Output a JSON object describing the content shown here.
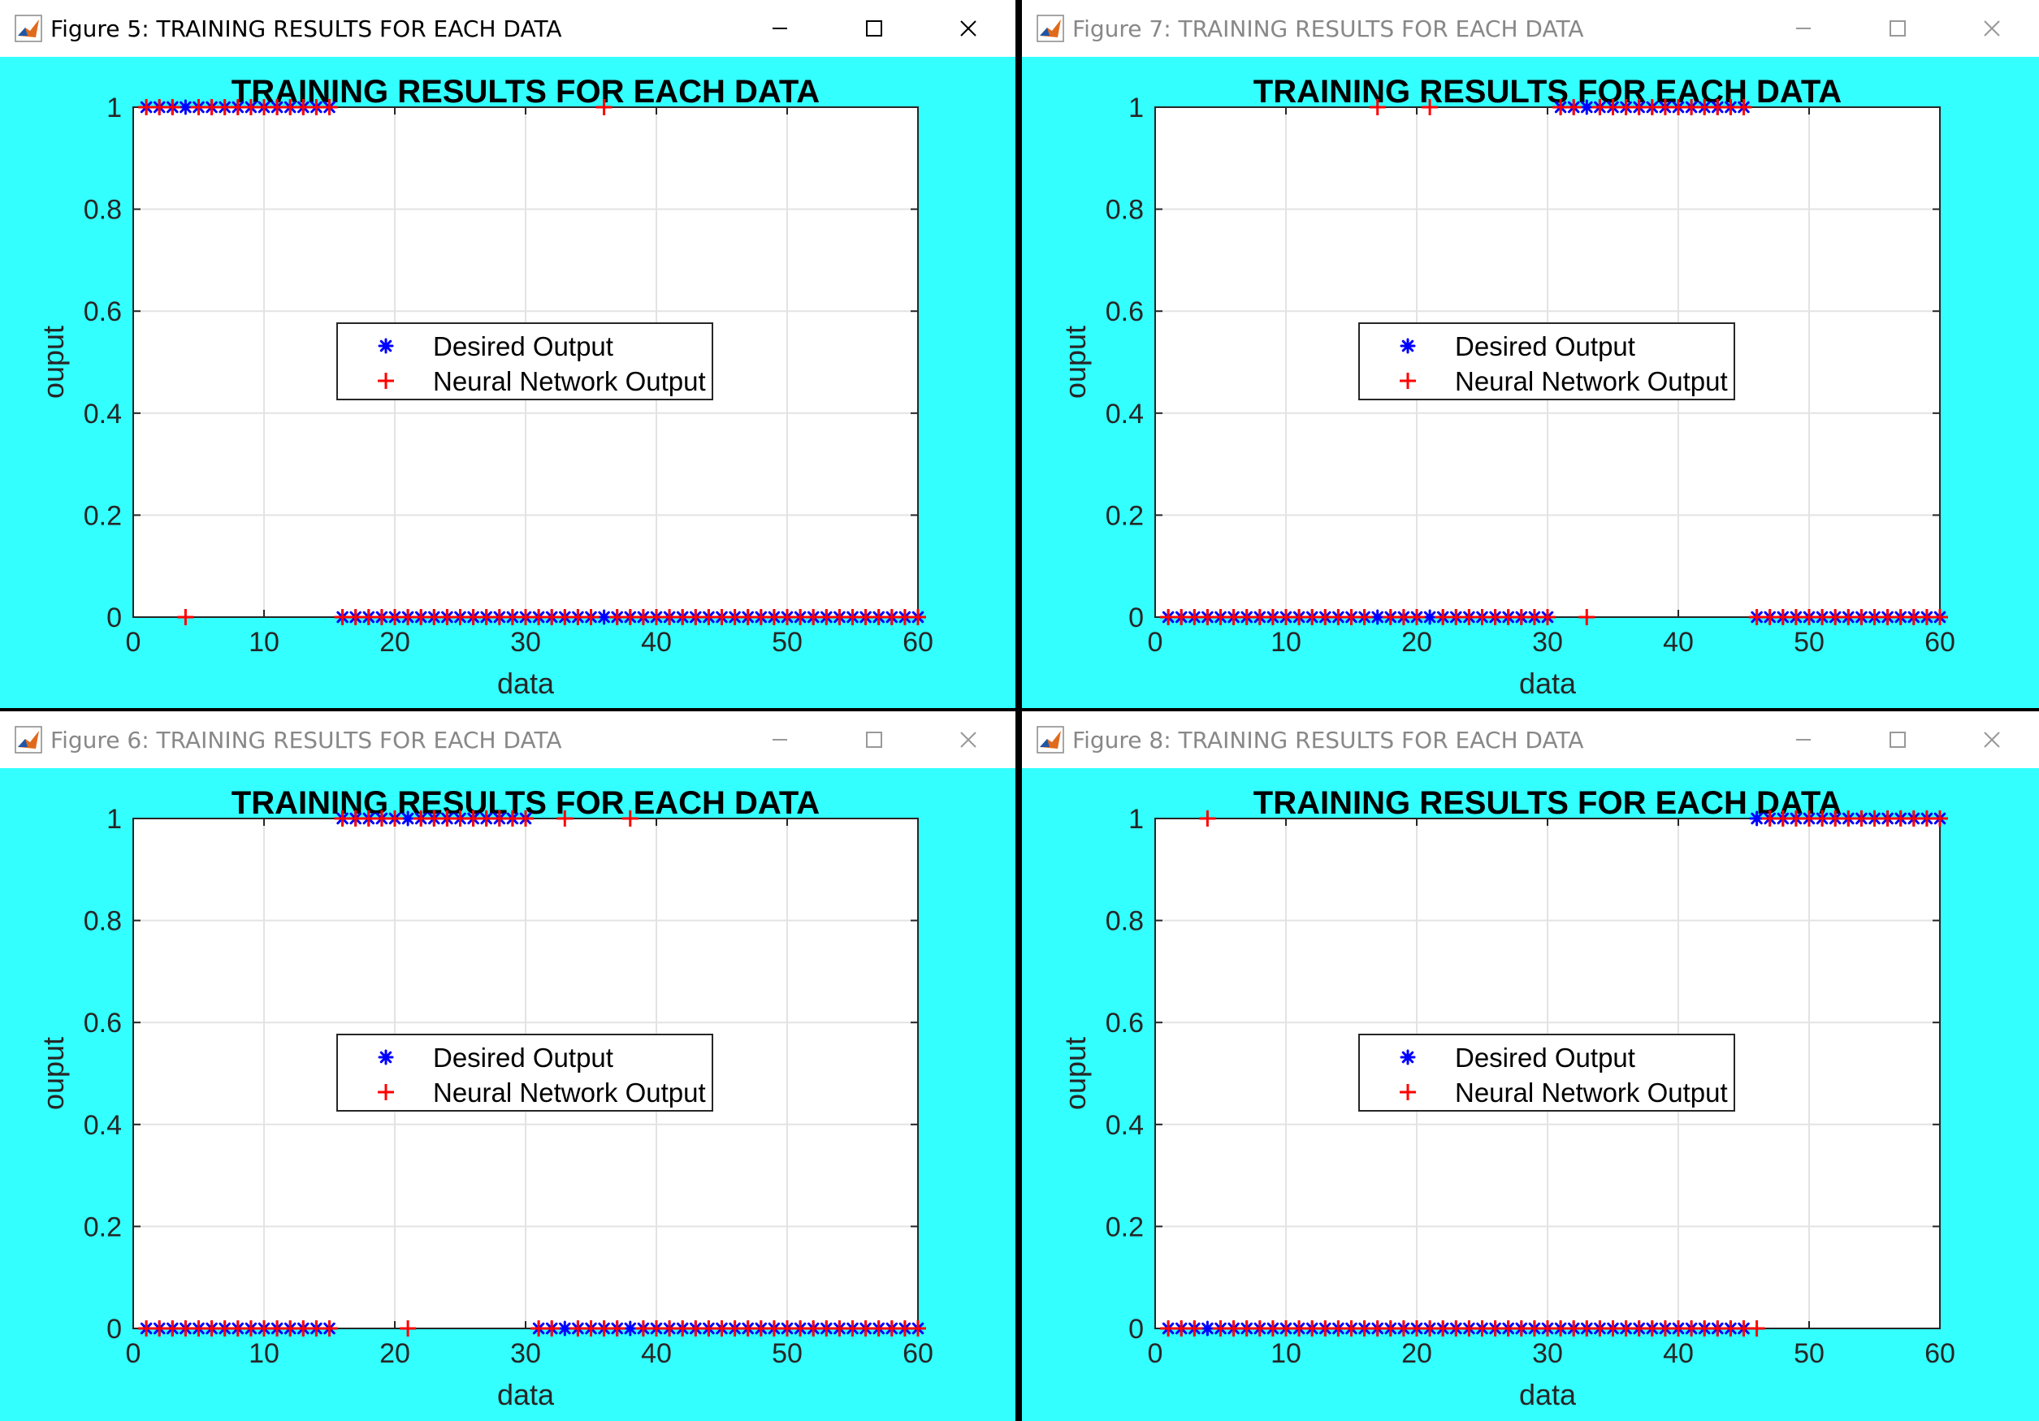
{
  "colors": {
    "figure_background": "#33ffff",
    "desired_marker": "#0000ff",
    "network_marker": "#ff0000"
  },
  "window_icons": [
    "matlab-icon",
    "minimize-icon",
    "maximize-icon",
    "close-icon"
  ],
  "windows": [
    {
      "title": "Figure 5: TRAINING RESULTS FOR EACH DATA",
      "active": true
    },
    {
      "title": "Figure 7: TRAINING RESULTS FOR EACH DATA",
      "active": false
    },
    {
      "title": "Figure 6: TRAINING RESULTS FOR EACH DATA",
      "active": false
    },
    {
      "title": "Figure 8: TRAINING RESULTS FOR EACH DATA",
      "active": false
    }
  ],
  "chart_data": [
    {
      "type": "scatter",
      "title": "TRAINING RESULTS FOR EACH DATA",
      "xlabel": "data",
      "ylabel": "ouput",
      "xlim": [
        0,
        60
      ],
      "ylim": [
        0,
        1
      ],
      "xticks": [
        "0",
        "10",
        "20",
        "30",
        "40",
        "50",
        "60"
      ],
      "yticks": [
        "0",
        "0.2",
        "0.4",
        "0.6",
        "0.8",
        "1"
      ],
      "grid": true,
      "legend": "center",
      "series": [
        {
          "name": "Desired Output",
          "marker": "*",
          "color": "#0000ff",
          "x": [
            1,
            2,
            3,
            4,
            5,
            6,
            7,
            8,
            9,
            10,
            11,
            12,
            13,
            14,
            15,
            16,
            17,
            18,
            19,
            20,
            21,
            22,
            23,
            24,
            25,
            26,
            27,
            28,
            29,
            30,
            31,
            32,
            33,
            34,
            35,
            36,
            37,
            38,
            39,
            40,
            41,
            42,
            43,
            44,
            45,
            46,
            47,
            48,
            49,
            50,
            51,
            52,
            53,
            54,
            55,
            56,
            57,
            58,
            59,
            60
          ],
          "y": [
            1,
            1,
            1,
            1,
            1,
            1,
            1,
            1,
            1,
            1,
            1,
            1,
            1,
            1,
            1,
            0,
            0,
            0,
            0,
            0,
            0,
            0,
            0,
            0,
            0,
            0,
            0,
            0,
            0,
            0,
            0,
            0,
            0,
            0,
            0,
            0,
            0,
            0,
            0,
            0,
            0,
            0,
            0,
            0,
            0,
            0,
            0,
            0,
            0,
            0,
            0,
            0,
            0,
            0,
            0,
            0,
            0,
            0,
            0,
            0
          ]
        },
        {
          "name": "Neural Network Output",
          "marker": "+",
          "color": "#ff0000",
          "x": [
            1,
            2,
            3,
            4,
            5,
            6,
            7,
            8,
            9,
            10,
            11,
            12,
            13,
            14,
            15,
            16,
            17,
            18,
            19,
            20,
            21,
            22,
            23,
            24,
            25,
            26,
            27,
            28,
            29,
            30,
            31,
            32,
            33,
            34,
            35,
            36,
            37,
            38,
            39,
            40,
            41,
            42,
            43,
            44,
            45,
            46,
            47,
            48,
            49,
            50,
            51,
            52,
            53,
            54,
            55,
            56,
            57,
            58,
            59,
            60
          ],
          "y": [
            1,
            1,
            1,
            0,
            1,
            1,
            1,
            1,
            1,
            1,
            1,
            1,
            1,
            1,
            1,
            0,
            0,
            0,
            0,
            0,
            0,
            0,
            0,
            0,
            0,
            0,
            0,
            0,
            0,
            0,
            0,
            0,
            0,
            0,
            0,
            1,
            0,
            0,
            0,
            0,
            0,
            0,
            0,
            0,
            0,
            0,
            0,
            0,
            0,
            0,
            0,
            0,
            0,
            0,
            0,
            0,
            0,
            0,
            0,
            0
          ]
        }
      ]
    },
    {
      "type": "scatter",
      "title": "TRAINING RESULTS FOR EACH DATA",
      "xlabel": "data",
      "ylabel": "ouput",
      "xlim": [
        0,
        60
      ],
      "ylim": [
        0,
        1
      ],
      "xticks": [
        "0",
        "10",
        "20",
        "30",
        "40",
        "50",
        "60"
      ],
      "yticks": [
        "0",
        "0.2",
        "0.4",
        "0.6",
        "0.8",
        "1"
      ],
      "grid": true,
      "legend": "center",
      "series": [
        {
          "name": "Desired Output",
          "marker": "*",
          "color": "#0000ff",
          "x": [
            1,
            2,
            3,
            4,
            5,
            6,
            7,
            8,
            9,
            10,
            11,
            12,
            13,
            14,
            15,
            16,
            17,
            18,
            19,
            20,
            21,
            22,
            23,
            24,
            25,
            26,
            27,
            28,
            29,
            30,
            31,
            32,
            33,
            34,
            35,
            36,
            37,
            38,
            39,
            40,
            41,
            42,
            43,
            44,
            45,
            46,
            47,
            48,
            49,
            50,
            51,
            52,
            53,
            54,
            55,
            56,
            57,
            58,
            59,
            60
          ],
          "y": [
            0,
            0,
            0,
            0,
            0,
            0,
            0,
            0,
            0,
            0,
            0,
            0,
            0,
            0,
            0,
            0,
            0,
            0,
            0,
            0,
            0,
            0,
            0,
            0,
            0,
            0,
            0,
            0,
            0,
            0,
            1,
            1,
            1,
            1,
            1,
            1,
            1,
            1,
            1,
            1,
            1,
            1,
            1,
            1,
            1,
            0,
            0,
            0,
            0,
            0,
            0,
            0,
            0,
            0,
            0,
            0,
            0,
            0,
            0,
            0
          ]
        },
        {
          "name": "Neural Network Output",
          "marker": "+",
          "color": "#ff0000",
          "x": [
            1,
            2,
            3,
            4,
            5,
            6,
            7,
            8,
            9,
            10,
            11,
            12,
            13,
            14,
            15,
            16,
            17,
            18,
            19,
            20,
            21,
            22,
            23,
            24,
            25,
            26,
            27,
            28,
            29,
            30,
            31,
            32,
            33,
            34,
            35,
            36,
            37,
            38,
            39,
            40,
            41,
            42,
            43,
            44,
            45,
            46,
            47,
            48,
            49,
            50,
            51,
            52,
            53,
            54,
            55,
            56,
            57,
            58,
            59,
            60
          ],
          "y": [
            0,
            0,
            0,
            0,
            0,
            0,
            0,
            0,
            0,
            0,
            0,
            0,
            0,
            0,
            0,
            0,
            1,
            0,
            0,
            0,
            1,
            0,
            0,
            0,
            0,
            0,
            0,
            0,
            0,
            0,
            1,
            1,
            0,
            1,
            1,
            1,
            1,
            1,
            1,
            1,
            1,
            1,
            1,
            1,
            1,
            0,
            0,
            0,
            0,
            0,
            0,
            0,
            0,
            0,
            0,
            0,
            0,
            0,
            0,
            0
          ]
        }
      ]
    },
    {
      "type": "scatter",
      "title": "TRAINING RESULTS FOR EACH DATA",
      "xlabel": "data",
      "ylabel": "ouput",
      "xlim": [
        0,
        60
      ],
      "ylim": [
        0,
        1
      ],
      "xticks": [
        "0",
        "10",
        "20",
        "30",
        "40",
        "50",
        "60"
      ],
      "yticks": [
        "0",
        "0.2",
        "0.4",
        "0.6",
        "0.8",
        "1"
      ],
      "grid": true,
      "legend": "center",
      "series": [
        {
          "name": "Desired Output",
          "marker": "*",
          "color": "#0000ff",
          "x": [
            1,
            2,
            3,
            4,
            5,
            6,
            7,
            8,
            9,
            10,
            11,
            12,
            13,
            14,
            15,
            16,
            17,
            18,
            19,
            20,
            21,
            22,
            23,
            24,
            25,
            26,
            27,
            28,
            29,
            30,
            31,
            32,
            33,
            34,
            35,
            36,
            37,
            38,
            39,
            40,
            41,
            42,
            43,
            44,
            45,
            46,
            47,
            48,
            49,
            50,
            51,
            52,
            53,
            54,
            55,
            56,
            57,
            58,
            59,
            60
          ],
          "y": [
            0,
            0,
            0,
            0,
            0,
            0,
            0,
            0,
            0,
            0,
            0,
            0,
            0,
            0,
            0,
            1,
            1,
            1,
            1,
            1,
            1,
            1,
            1,
            1,
            1,
            1,
            1,
            1,
            1,
            1,
            0,
            0,
            0,
            0,
            0,
            0,
            0,
            0,
            0,
            0,
            0,
            0,
            0,
            0,
            0,
            0,
            0,
            0,
            0,
            0,
            0,
            0,
            0,
            0,
            0,
            0,
            0,
            0,
            0,
            0
          ]
        },
        {
          "name": "Neural Network Output",
          "marker": "+",
          "color": "#ff0000",
          "x": [
            1,
            2,
            3,
            4,
            5,
            6,
            7,
            8,
            9,
            10,
            11,
            12,
            13,
            14,
            15,
            16,
            17,
            18,
            19,
            20,
            21,
            22,
            23,
            24,
            25,
            26,
            27,
            28,
            29,
            30,
            31,
            32,
            33,
            34,
            35,
            36,
            37,
            38,
            39,
            40,
            41,
            42,
            43,
            44,
            45,
            46,
            47,
            48,
            49,
            50,
            51,
            52,
            53,
            54,
            55,
            56,
            57,
            58,
            59,
            60
          ],
          "y": [
            0,
            0,
            0,
            0,
            0,
            0,
            0,
            0,
            0,
            0,
            0,
            0,
            0,
            0,
            0,
            1,
            1,
            1,
            1,
            1,
            0,
            1,
            1,
            1,
            1,
            1,
            1,
            1,
            1,
            1,
            0,
            0,
            1,
            0,
            0,
            0,
            0,
            1,
            0,
            0,
            0,
            0,
            0,
            0,
            0,
            0,
            0,
            0,
            0,
            0,
            0,
            0,
            0,
            0,
            0,
            0,
            0,
            0,
            0,
            0
          ]
        }
      ]
    },
    {
      "type": "scatter",
      "title": "TRAINING RESULTS FOR EACH DATA",
      "xlabel": "data",
      "ylabel": "ouput",
      "xlim": [
        0,
        60
      ],
      "ylim": [
        0,
        1
      ],
      "xticks": [
        "0",
        "10",
        "20",
        "30",
        "40",
        "50",
        "60"
      ],
      "yticks": [
        "0",
        "0.2",
        "0.4",
        "0.6",
        "0.8",
        "1"
      ],
      "grid": true,
      "legend": "center",
      "series": [
        {
          "name": "Desired Output",
          "marker": "*",
          "color": "#0000ff",
          "x": [
            1,
            2,
            3,
            4,
            5,
            6,
            7,
            8,
            9,
            10,
            11,
            12,
            13,
            14,
            15,
            16,
            17,
            18,
            19,
            20,
            21,
            22,
            23,
            24,
            25,
            26,
            27,
            28,
            29,
            30,
            31,
            32,
            33,
            34,
            35,
            36,
            37,
            38,
            39,
            40,
            41,
            42,
            43,
            44,
            45,
            46,
            47,
            48,
            49,
            50,
            51,
            52,
            53,
            54,
            55,
            56,
            57,
            58,
            59,
            60
          ],
          "y": [
            0,
            0,
            0,
            0,
            0,
            0,
            0,
            0,
            0,
            0,
            0,
            0,
            0,
            0,
            0,
            0,
            0,
            0,
            0,
            0,
            0,
            0,
            0,
            0,
            0,
            0,
            0,
            0,
            0,
            0,
            0,
            0,
            0,
            0,
            0,
            0,
            0,
            0,
            0,
            0,
            0,
            0,
            0,
            0,
            0,
            1,
            1,
            1,
            1,
            1,
            1,
            1,
            1,
            1,
            1,
            1,
            1,
            1,
            1,
            1
          ]
        },
        {
          "name": "Neural Network Output",
          "marker": "+",
          "color": "#ff0000",
          "x": [
            1,
            2,
            3,
            4,
            5,
            6,
            7,
            8,
            9,
            10,
            11,
            12,
            13,
            14,
            15,
            16,
            17,
            18,
            19,
            20,
            21,
            22,
            23,
            24,
            25,
            26,
            27,
            28,
            29,
            30,
            31,
            32,
            33,
            34,
            35,
            36,
            37,
            38,
            39,
            40,
            41,
            42,
            43,
            44,
            45,
            46,
            47,
            48,
            49,
            50,
            51,
            52,
            53,
            54,
            55,
            56,
            57,
            58,
            59,
            60
          ],
          "y": [
            0,
            0,
            0,
            1,
            0,
            0,
            0,
            0,
            0,
            0,
            0,
            0,
            0,
            0,
            0,
            0,
            0,
            0,
            0,
            0,
            0,
            0,
            0,
            0,
            0,
            0,
            0,
            0,
            0,
            0,
            0,
            0,
            0,
            0,
            0,
            0,
            0,
            0,
            0,
            0,
            0,
            0,
            0,
            0,
            0,
            0,
            1,
            1,
            1,
            1,
            1,
            1,
            1,
            1,
            1,
            1,
            1,
            1,
            1,
            1
          ]
        }
      ]
    }
  ]
}
